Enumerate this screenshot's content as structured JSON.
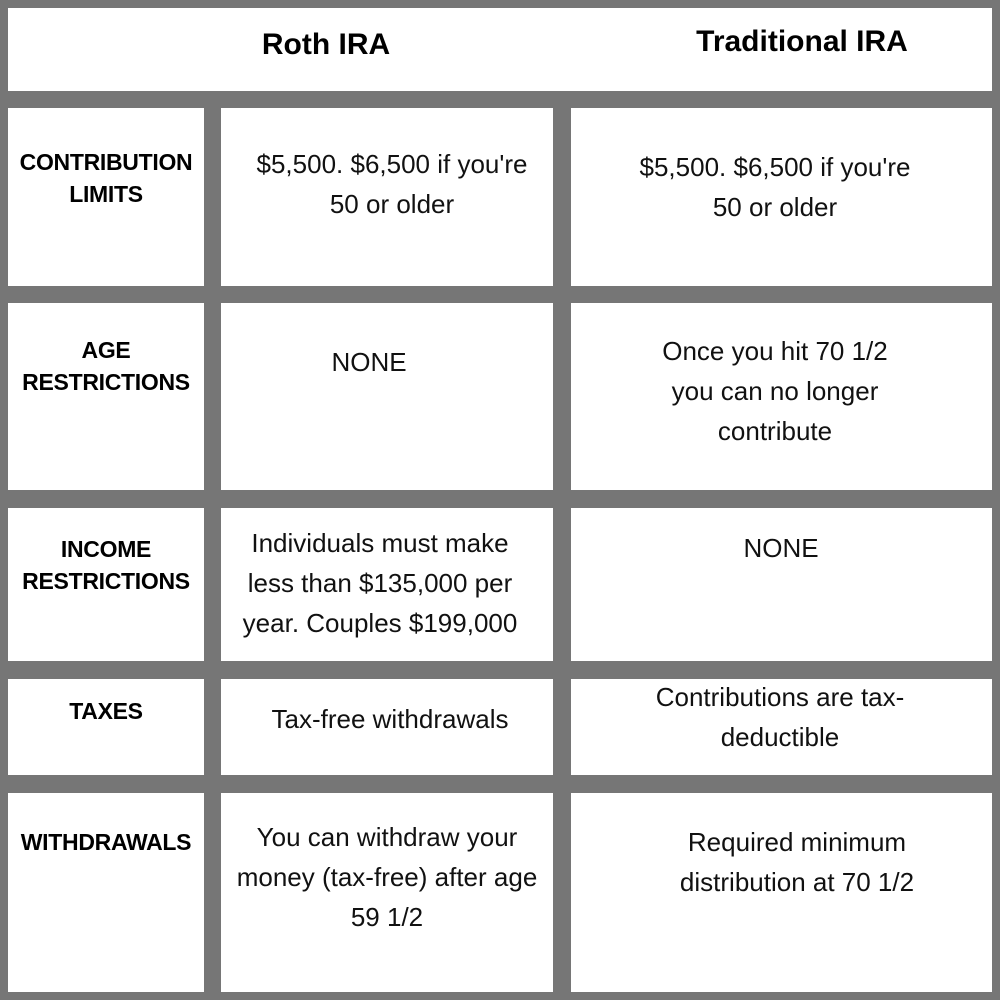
{
  "header": {
    "col1": "Roth IRA",
    "col2": "Traditional IRA"
  },
  "rows": [
    {
      "label": [
        "CONTRIBUTION",
        "LIMITS"
      ],
      "roth": [
        "$5,500. $6,500 if you're",
        "50 or older"
      ],
      "traditional": [
        "$5,500. $6,500 if you're",
        "50 or older"
      ]
    },
    {
      "label": [
        "AGE",
        "RESTRICTIONS"
      ],
      "roth": [
        "NONE"
      ],
      "traditional": [
        "Once you hit 70 1/2",
        "you can no longer",
        "contribute"
      ]
    },
    {
      "label": [
        "INCOME",
        "RESTRICTIONS"
      ],
      "roth": [
        "Individuals must make",
        "less than $135,000 per",
        "year. Couples $199,000"
      ],
      "traditional": [
        "NONE"
      ]
    },
    {
      "label": [
        "TAXES"
      ],
      "roth": [
        "Tax-free withdrawals"
      ],
      "traditional": [
        "Contributions are tax-",
        "deductible"
      ]
    },
    {
      "label": [
        "WITHDRAWALS"
      ],
      "roth": [
        "You can withdraw your",
        "money (tax-free) after age",
        "59 1/2"
      ],
      "traditional": [
        "Required minimum",
        "distribution at 70 1/2"
      ]
    }
  ]
}
